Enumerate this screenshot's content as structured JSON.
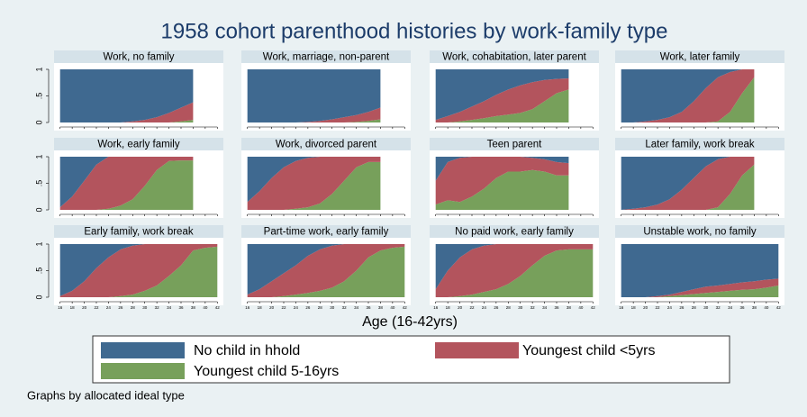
{
  "chart_data": {
    "type": "area",
    "title": "1958 cohort parenthood histories by work-family type",
    "xlabel": "Age (16-42yrs)",
    "note": "Graphs by allocated ideal type",
    "x": [
      16,
      18,
      20,
      22,
      24,
      26,
      28,
      30,
      32,
      34,
      36,
      38,
      40,
      42
    ],
    "xlim": [
      15,
      43
    ],
    "xticks": [
      16,
      18,
      20,
      22,
      24,
      26,
      28,
      30,
      32,
      34,
      36,
      38,
      40,
      42
    ],
    "ylim": [
      0,
      1
    ],
    "yticks": [
      0,
      {
        "value": 0.5,
        "label": ".5"
      },
      1
    ],
    "series": [
      {
        "name": "No child in hhold",
        "color": "#3f6990"
      },
      {
        "name": "Youngest child <5yrs",
        "color": "#b3545d"
      },
      {
        "name": "Youngest child 5-16yrs",
        "color": "#77a05b"
      }
    ],
    "panels": [
      {
        "title": "Work, no family",
        "values": [
          [
            1,
            1,
            1,
            1,
            1,
            1,
            0.98,
            0.95,
            0.9,
            0.82,
            0.72,
            0.62,
            null,
            null
          ],
          [
            0,
            0,
            0,
            0,
            0,
            0,
            0.02,
            0.05,
            0.1,
            0.18,
            0.26,
            0.33,
            null,
            null
          ],
          [
            0,
            0,
            0,
            0,
            0,
            0,
            0,
            0,
            0,
            0,
            0.02,
            0.05,
            null,
            null
          ]
        ]
      },
      {
        "title": "Work, marriage, non-parent",
        "values": [
          [
            1,
            1,
            1,
            1,
            1,
            0.99,
            0.97,
            0.94,
            0.9,
            0.86,
            0.8,
            0.72,
            null,
            null
          ],
          [
            0,
            0,
            0,
            0,
            0,
            0.01,
            0.03,
            0.06,
            0.1,
            0.13,
            0.17,
            0.22,
            null,
            null
          ],
          [
            0,
            0,
            0,
            0,
            0,
            0,
            0,
            0,
            0,
            0.01,
            0.03,
            0.06,
            null,
            null
          ]
        ]
      },
      {
        "title": "Work, cohabitation, later parent",
        "values": [
          [
            0.95,
            0.88,
            0.8,
            0.7,
            0.6,
            0.48,
            0.38,
            0.3,
            0.24,
            0.2,
            0.18,
            0.17,
            null,
            null
          ],
          [
            0.05,
            0.12,
            0.18,
            0.25,
            0.32,
            0.4,
            0.47,
            0.52,
            0.51,
            0.4,
            0.27,
            0.21,
            null,
            null
          ],
          [
            0,
            0,
            0.02,
            0.05,
            0.08,
            0.12,
            0.15,
            0.18,
            0.25,
            0.4,
            0.55,
            0.62,
            null,
            null
          ]
        ]
      },
      {
        "title": "Work, later family",
        "values": [
          [
            1,
            1,
            0.98,
            0.95,
            0.9,
            0.8,
            0.6,
            0.35,
            0.15,
            0.05,
            0,
            0,
            null,
            null
          ],
          [
            0,
            0,
            0.02,
            0.05,
            0.1,
            0.2,
            0.4,
            0.65,
            0.83,
            0.75,
            0.45,
            0.15,
            null,
            null
          ],
          [
            0,
            0,
            0,
            0,
            0,
            0,
            0,
            0,
            0.02,
            0.2,
            0.55,
            0.85,
            null,
            null
          ]
        ]
      },
      {
        "title": "Work, early family",
        "values": [
          [
            0.95,
            0.75,
            0.45,
            0.15,
            0,
            0,
            0,
            0,
            0,
            0,
            0,
            0,
            null,
            null
          ],
          [
            0.05,
            0.25,
            0.55,
            0.85,
            0.98,
            0.92,
            0.8,
            0.55,
            0.25,
            0.08,
            0.07,
            0.07,
            null,
            null
          ],
          [
            0,
            0,
            0,
            0,
            0.02,
            0.08,
            0.2,
            0.45,
            0.75,
            0.92,
            0.93,
            0.93,
            null,
            null
          ]
        ]
      },
      {
        "title": "Work, divorced parent",
        "values": [
          [
            0.85,
            0.65,
            0.4,
            0.2,
            0.08,
            0.02,
            0,
            0,
            0,
            0,
            0,
            0,
            null,
            null
          ],
          [
            0.15,
            0.35,
            0.6,
            0.8,
            0.9,
            0.93,
            0.88,
            0.7,
            0.45,
            0.2,
            0.1,
            0.1,
            null,
            null
          ],
          [
            0,
            0,
            0,
            0,
            0.02,
            0.05,
            0.12,
            0.3,
            0.55,
            0.8,
            0.9,
            0.9,
            null,
            null
          ]
        ]
      },
      {
        "title": "Teen parent",
        "values": [
          [
            0.45,
            0.1,
            0.02,
            0,
            0,
            0,
            0,
            0,
            0.02,
            0.05,
            0.1,
            0.12,
            null,
            null
          ],
          [
            0.45,
            0.72,
            0.83,
            0.75,
            0.6,
            0.4,
            0.28,
            0.28,
            0.23,
            0.23,
            0.25,
            0.23,
            null,
            null
          ],
          [
            0.1,
            0.18,
            0.15,
            0.25,
            0.4,
            0.6,
            0.72,
            0.72,
            0.75,
            0.72,
            0.65,
            0.65,
            null,
            null
          ]
        ]
      },
      {
        "title": "Later family, work break",
        "values": [
          [
            1,
            0.98,
            0.95,
            0.9,
            0.8,
            0.62,
            0.4,
            0.18,
            0.05,
            0,
            0,
            0,
            null,
            null
          ],
          [
            0,
            0.02,
            0.05,
            0.1,
            0.2,
            0.38,
            0.6,
            0.82,
            0.9,
            0.7,
            0.35,
            0.15,
            null,
            null
          ],
          [
            0,
            0,
            0,
            0,
            0,
            0,
            0,
            0,
            0.05,
            0.3,
            0.65,
            0.85,
            null,
            null
          ]
        ]
      },
      {
        "title": "Early family, work break",
        "values": [
          [
            0.98,
            0.88,
            0.7,
            0.45,
            0.25,
            0.1,
            0.03,
            0,
            0,
            0,
            0,
            0,
            0,
            0
          ],
          [
            0.02,
            0.12,
            0.3,
            0.55,
            0.75,
            0.88,
            0.92,
            0.88,
            0.78,
            0.6,
            0.4,
            0.12,
            0.07,
            0.05
          ],
          [
            0,
            0,
            0,
            0,
            0,
            0.02,
            0.05,
            0.12,
            0.22,
            0.4,
            0.6,
            0.88,
            0.93,
            0.95
          ]
        ]
      },
      {
        "title": "Part-time work, early family",
        "values": [
          [
            0.95,
            0.85,
            0.7,
            0.55,
            0.4,
            0.22,
            0.1,
            0.03,
            0,
            0,
            0,
            0,
            0,
            0
          ],
          [
            0.05,
            0.15,
            0.3,
            0.43,
            0.55,
            0.7,
            0.78,
            0.79,
            0.7,
            0.5,
            0.25,
            0.12,
            0.07,
            0.05
          ],
          [
            0,
            0,
            0,
            0.02,
            0.05,
            0.08,
            0.12,
            0.18,
            0.3,
            0.5,
            0.75,
            0.88,
            0.93,
            0.95
          ]
        ]
      },
      {
        "title": "No paid work, early family",
        "values": [
          [
            0.85,
            0.5,
            0.25,
            0.1,
            0.03,
            0,
            0,
            0,
            0,
            0,
            0,
            0,
            0,
            0
          ],
          [
            0.15,
            0.5,
            0.73,
            0.85,
            0.87,
            0.85,
            0.75,
            0.6,
            0.4,
            0.22,
            0.12,
            0.1,
            0.1,
            0.1
          ],
          [
            0,
            0,
            0.02,
            0.05,
            0.1,
            0.15,
            0.25,
            0.4,
            0.6,
            0.78,
            0.88,
            0.9,
            0.9,
            0.9
          ]
        ]
      },
      {
        "title": "Unstable work, no family",
        "values": [
          [
            1,
            1,
            1,
            0.98,
            0.95,
            0.9,
            0.85,
            0.8,
            0.78,
            0.75,
            0.72,
            0.7,
            0.67,
            0.65
          ],
          [
            0,
            0,
            0,
            0.02,
            0.03,
            0.06,
            0.09,
            0.12,
            0.12,
            0.13,
            0.14,
            0.15,
            0.15,
            0.13
          ],
          [
            0,
            0,
            0,
            0,
            0.02,
            0.04,
            0.06,
            0.08,
            0.1,
            0.12,
            0.14,
            0.15,
            0.18,
            0.22
          ]
        ]
      }
    ]
  }
}
